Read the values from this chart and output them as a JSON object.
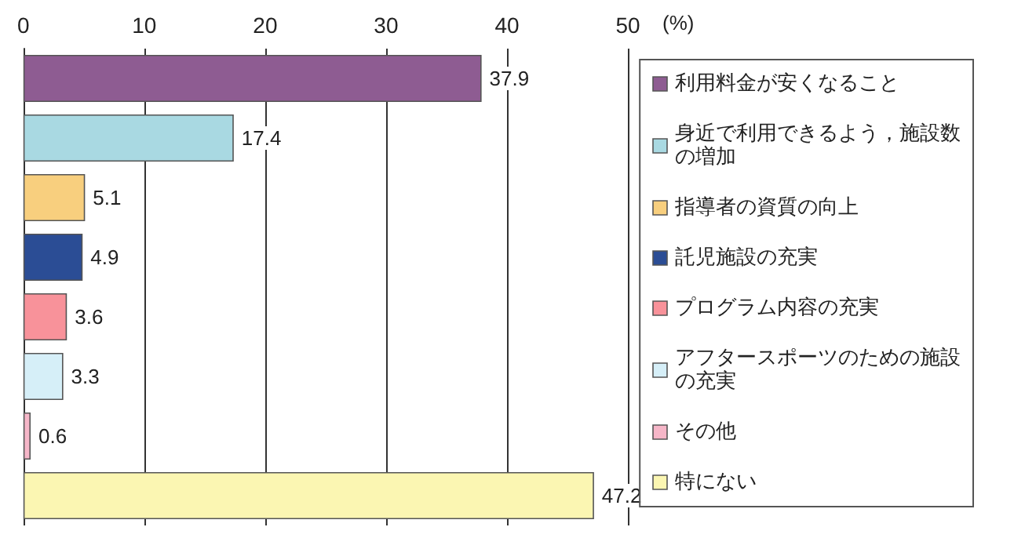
{
  "chart_data": {
    "type": "bar",
    "orientation": "horizontal",
    "stacked": true,
    "xlabel": "(%)",
    "categories": [
      null,
      null,
      null,
      null,
      null,
      null,
      null,
      null
    ],
    "series": [
      {
        "name": "利用料金が安くなること",
        "color": "#8e5c92",
        "values": [
          37.9,
          null,
          null,
          null,
          null,
          null,
          null,
          null
        ]
      },
      {
        "name": "身近で利用できるよう，施設数の増加",
        "color": "#a9d9e2",
        "values": [
          null,
          17.4,
          null,
          null,
          null,
          null,
          null,
          null
        ]
      },
      {
        "name": "指導者の資質の向上",
        "color": "#f8cf7e",
        "values": [
          null,
          null,
          5.1,
          null,
          null,
          null,
          null,
          null
        ]
      },
      {
        "name": "託児施設の充実",
        "color": "#2b4d95",
        "values": [
          null,
          null,
          null,
          4.9,
          null,
          null,
          null,
          null
        ]
      },
      {
        "name": "プログラム内容の充実",
        "color": "#f8929a",
        "values": [
          null,
          null,
          null,
          null,
          3.6,
          null,
          null,
          null
        ]
      },
      {
        "name": "アフタースポーツのための施設の充実",
        "color": "#d6eff8",
        "values": [
          null,
          null,
          null,
          null,
          null,
          3.3,
          null,
          null
        ]
      },
      {
        "name": "その他",
        "color": "#f6b6c8",
        "values": [
          null,
          null,
          null,
          null,
          null,
          null,
          0.6,
          null
        ]
      },
      {
        "name": "特にない",
        "color": "#fbf6b2",
        "values": [
          null,
          null,
          null,
          null,
          null,
          null,
          null,
          47.2
        ]
      }
    ],
    "xlim": [
      0,
      50
    ],
    "xticks": [
      0,
      10,
      20,
      30,
      40,
      50
    ],
    "grid": "x",
    "legend": "right",
    "data_labels": true,
    "tick_labels": "x"
  }
}
